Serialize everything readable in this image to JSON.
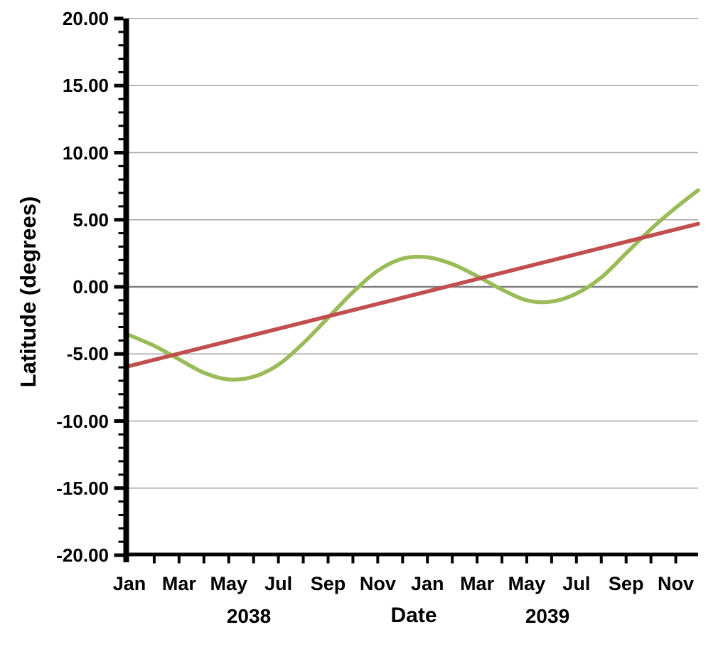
{
  "page": {
    "background": "#FFFFFF",
    "text_color": "#000000"
  },
  "chart_data": {
    "type": "line",
    "title": "",
    "xlabel": "Date",
    "ylabel": "Latitude (degrees)",
    "x_axis": {
      "label": "Date",
      "range_months": [
        0,
        22.9
      ],
      "start_month": "Jan",
      "start_year": "2038",
      "minor_tick_every_months": 1,
      "month_labels": [
        "Jan",
        "Mar",
        "May",
        "Jul",
        "Sep",
        "Nov",
        "Jan",
        "Mar",
        "May",
        "Jul",
        "Sep",
        "Nov"
      ],
      "month_label_positions": [
        0,
        2,
        4,
        6,
        8,
        10,
        12,
        14,
        16,
        18,
        20,
        22
      ],
      "year_labels": [
        "2038",
        "2039"
      ]
    },
    "y_axis": {
      "label": "Latitude (degrees)",
      "min": -20,
      "max": 20,
      "major_step": 5,
      "minor_step": 1,
      "tick_labels": [
        "20.00",
        "15.00",
        "10.00",
        "5.00",
        "0.00",
        "-5.00",
        "-10.00",
        "-15.00",
        "-20.00"
      ]
    },
    "grid": {
      "on": true,
      "major_color": "#A6A6A6",
      "zero_line_color": "#808080",
      "axis_color": "#000000"
    },
    "legend": {
      "shown": false
    },
    "series": [
      {
        "id": "green-oscillating-line",
        "color": "#9BBB59",
        "x_months": [
          0,
          1,
          2,
          3,
          4,
          5,
          6,
          7,
          8,
          9,
          10,
          11,
          12,
          13,
          14,
          15,
          16,
          17,
          18,
          19,
          20,
          21,
          22,
          22.9
        ],
        "values": [
          -3.6,
          -4.4,
          -5.4,
          -6.4,
          -6.9,
          -6.7,
          -5.8,
          -4.2,
          -2.3,
          -0.4,
          1.2,
          2.1,
          2.2,
          1.7,
          0.8,
          -0.2,
          -1.0,
          -1.1,
          -0.5,
          0.7,
          2.5,
          4.3,
          5.9,
          7.2
        ]
      },
      {
        "id": "red-trend-line",
        "color": "#C0504D",
        "x_months": [
          0,
          22.9
        ],
        "values": [
          -5.9,
          4.7
        ]
      }
    ]
  }
}
